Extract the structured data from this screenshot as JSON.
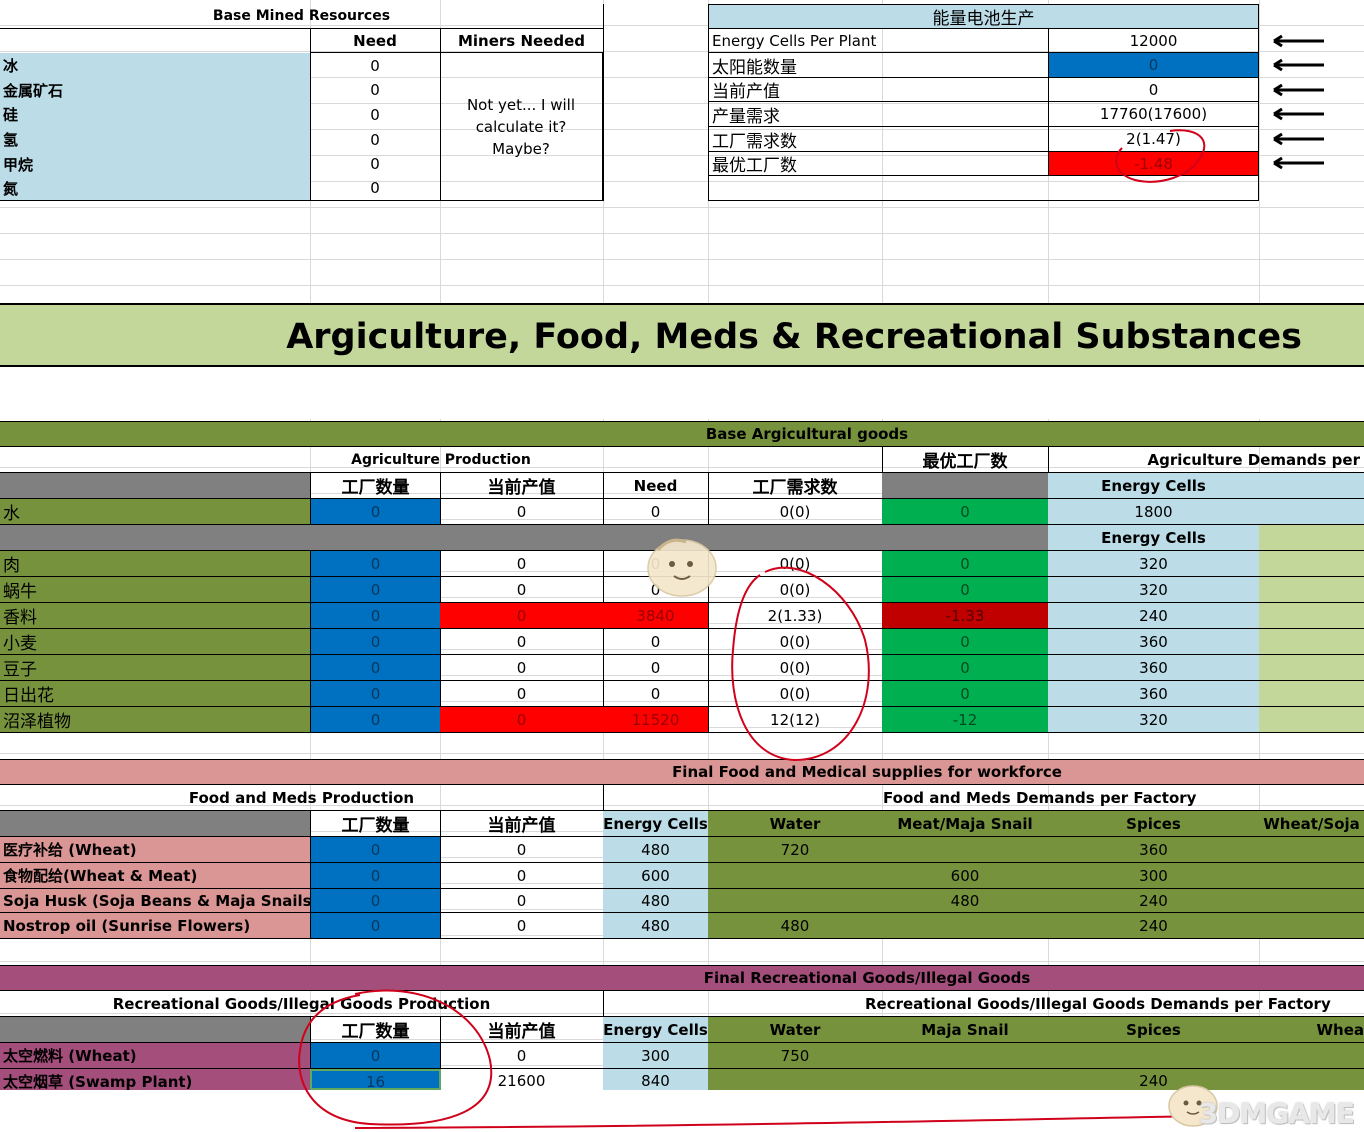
{
  "mined": {
    "title": "Base Mined Resources",
    "col_need": "Need",
    "col_miners": "Miners Needed",
    "miners_note": "Not yet... I will calculate it? Maybe?",
    "rows": [
      {
        "name": "冰",
        "need": "0"
      },
      {
        "name": "金属矿石",
        "need": "0"
      },
      {
        "name": "硅",
        "need": "0"
      },
      {
        "name": "氢",
        "need": "0"
      },
      {
        "name": "甲烷",
        "need": "0"
      },
      {
        "name": "氮",
        "need": "0"
      }
    ]
  },
  "energy": {
    "title": "能量电池生产",
    "rows": [
      {
        "label": "Energy Cells Per Plant",
        "value": "12000"
      },
      {
        "label": "太阳能数量",
        "value": "0"
      },
      {
        "label": "当前产值",
        "value": "0"
      },
      {
        "label": "产量需求",
        "value": "17760(17600)"
      },
      {
        "label": "工厂需求数",
        "value": "2(1.47)"
      },
      {
        "label": "最优工厂数",
        "value": "-1.48"
      }
    ]
  },
  "banner": {
    "title": "Argiculture, Food, Meds & Recreational Substances"
  },
  "agri": {
    "section_title": "Base Argicultural goods",
    "prod_title": "Agriculture Production",
    "optimal_title": "最优工厂数",
    "demands_title": "Agriculture Demands per",
    "col_factories": "工厂数量",
    "col_output": "当前产值",
    "col_need": "Need",
    "col_required": "工厂需求数",
    "col_energy": "Energy Cells",
    "water": {
      "name": "水",
      "factories": "0",
      "output": "0",
      "need": "0",
      "required": "0(0)",
      "optimal": "0",
      "energy": "1800"
    },
    "col_energy2": "Energy Cells",
    "rows": [
      {
        "name": "肉",
        "factories": "0",
        "output": "0",
        "need": "0",
        "required": "0(0)",
        "optimal": "0",
        "energy": "320"
      },
      {
        "name": "蜗牛",
        "factories": "0",
        "output": "0",
        "need": "0",
        "required": "0(0)",
        "optimal": "0",
        "energy": "320"
      },
      {
        "name": "香料",
        "factories": "0",
        "output": "0",
        "need": "3840",
        "required": "2(1.33)",
        "optimal": "-1.33",
        "energy": "240"
      },
      {
        "name": "小麦",
        "factories": "0",
        "output": "0",
        "need": "0",
        "required": "0(0)",
        "optimal": "0",
        "energy": "360"
      },
      {
        "name": "豆子",
        "factories": "0",
        "output": "0",
        "need": "0",
        "required": "0(0)",
        "optimal": "0",
        "energy": "360"
      },
      {
        "name": "日出花",
        "factories": "0",
        "output": "0",
        "need": "0",
        "required": "0(0)",
        "optimal": "0",
        "energy": "360"
      },
      {
        "name": "沼泽植物",
        "factories": "0",
        "output": "0",
        "need": "11520",
        "required": "12(12)",
        "optimal": "-12",
        "energy": "320"
      }
    ]
  },
  "food": {
    "section_title": "Final Food and Medical supplies for workforce",
    "prod_title": "Food and Meds Production",
    "demands_title": "Food and Meds Demands per Factory",
    "col_factories": "工厂数量",
    "col_output": "当前产值",
    "col_energy": "Energy Cells",
    "col_water": "Water",
    "col_meat": "Meat/Maja Snail",
    "col_spices": "Spices",
    "col_wheat": "Wheat/Soja",
    "rows": [
      {
        "name": "医疗补给 (Wheat)",
        "factories": "0",
        "output": "0",
        "energy": "480",
        "water": "720",
        "meat": "",
        "spices": "360"
      },
      {
        "name": "食物配给(Wheat & Meat)",
        "factories": "0",
        "output": "0",
        "energy": "600",
        "water": "",
        "meat": "600",
        "spices": "300"
      },
      {
        "name": "Soja Husk (Soja Beans & Maja Snails)",
        "factories": "0",
        "output": "0",
        "energy": "480",
        "water": "",
        "meat": "480",
        "spices": "240"
      },
      {
        "name": "Nostrop oil (Sunrise Flowers)",
        "factories": "0",
        "output": "0",
        "energy": "480",
        "water": "480",
        "meat": "",
        "spices": "240"
      }
    ]
  },
  "rec": {
    "section_title": "Final Recreational Goods/Illegal Goods",
    "prod_title": "Recreational Goods/Illegal Goods Production",
    "demands_title": "Recreational Goods/Illegal Goods Demands per Factory",
    "col_factories": "工厂数量",
    "col_output": "当前产值",
    "col_energy": "Energy Cells",
    "col_water": "Water",
    "col_snail": "Maja Snail",
    "col_spices": "Spices",
    "col_wheat": "Whea",
    "rows": [
      {
        "name": "太空燃料 (Wheat)",
        "factories": "0",
        "output": "0",
        "energy": "300",
        "water": "750",
        "snail": "",
        "spices": ""
      },
      {
        "name": "太空烟草 (Swamp Plant)",
        "factories": "16",
        "output": "21600",
        "energy": "840",
        "water": "",
        "snail": "",
        "spices": "240"
      }
    ]
  },
  "watermark": {
    "text": "3DMGAME"
  },
  "colors": {
    "light_blue": "#bcdde8",
    "blue": "#0070c0",
    "red": "#ff0000",
    "dark_red": "#c00000",
    "green": "#00b050",
    "olive": "#76923c",
    "olive_light": "#c4d79b",
    "pink": "#da9694",
    "purple": "#a34e7b",
    "annotation_red": "#d0021b"
  }
}
